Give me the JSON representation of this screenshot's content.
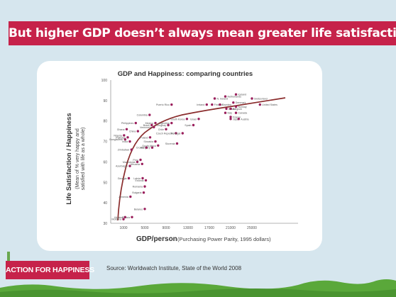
{
  "slide": {
    "title": "But higher GDP doesn’t always mean greater life satisfaction",
    "logo_text": "ACTION FOR HAPPINESS",
    "source": "Source: Worldwatch Institute, State of the World 2008",
    "colors": {
      "banner": "#c6224a",
      "background": "#d6e6ee",
      "dots": "#9a1f5c",
      "curve": "#8a2c2c",
      "grass": "#5aa83a"
    }
  },
  "chart_data": {
    "type": "scatter",
    "title": "GDP and Happiness: comparing countries",
    "xlabel_main": "GDP/person",
    "xlabel_sub": "(Purchasing Power Parity, 1995 dollars)",
    "ylabel_main": "Life Satisfaction / Happiness",
    "ylabel_sub": [
      "(Mean of % very happy and",
      "satisfied with life as a whole)"
    ],
    "x_ticks": [
      "1000",
      "5000",
      "9000",
      "13000",
      "17000",
      "21000",
      "25000"
    ],
    "y_ticks": [
      30,
      40,
      50,
      60,
      70,
      80,
      90,
      100
    ],
    "ylim": [
      30,
      100
    ],
    "grid": false,
    "points": [
      {
        "label": "Moldova",
        "x": 1000,
        "y": 32
      },
      {
        "label": "Russia",
        "x": 2600,
        "y": 33
      },
      {
        "label": "Ukraine",
        "x": 1300,
        "y": 33
      },
      {
        "label": "Belarus",
        "x": 5000,
        "y": 37
      },
      {
        "label": "Bulgaria",
        "x": 4800,
        "y": 45
      },
      {
        "label": "Latvia",
        "x": 4600,
        "y": 52
      },
      {
        "label": "Romania",
        "x": 5000,
        "y": 48
      },
      {
        "label": "Estonia",
        "x": 5200,
        "y": 51
      },
      {
        "label": "Lithuania",
        "x": 4500,
        "y": 59
      },
      {
        "label": "Hungary",
        "x": 6400,
        "y": 67
      },
      {
        "label": "Croatia",
        "x": 5300,
        "y": 67
      },
      {
        "label": "South Africa",
        "x": 7500,
        "y": 68
      },
      {
        "label": "Slovakia",
        "x": 7000,
        "y": 70
      },
      {
        "label": "Poland",
        "x": 6000,
        "y": 72
      },
      {
        "label": "Czech Republic",
        "x": 10800,
        "y": 74
      },
      {
        "label": "Chile",
        "x": 9000,
        "y": 76
      },
      {
        "label": "Argentina",
        "x": 10000,
        "y": 79
      },
      {
        "label": "Uruguay",
        "x": 9400,
        "y": 78
      },
      {
        "label": "Portugal",
        "x": 12000,
        "y": 74
      },
      {
        "label": "Slovenia",
        "x": 11000,
        "y": 69
      },
      {
        "label": "Puerto Rico",
        "x": 10000,
        "y": 88
      },
      {
        "label": "South Korea",
        "x": 12800,
        "y": 81
      },
      {
        "label": "Spain",
        "x": 14000,
        "y": 78
      },
      {
        "label": "Israel",
        "x": 15000,
        "y": 81
      },
      {
        "label": "Colombia",
        "x": 5900,
        "y": 83
      },
      {
        "label": "Mexico",
        "x": 7000,
        "y": 79
      },
      {
        "label": "Venezuela",
        "x": 6700,
        "y": 77
      },
      {
        "label": "Philippines",
        "x": 3300,
        "y": 79
      },
      {
        "label": "Brazil",
        "x": 6300,
        "y": 78
      },
      {
        "label": "China",
        "x": 3700,
        "y": 75
      },
      {
        "label": "Ghana",
        "x": 1600,
        "y": 76
      },
      {
        "label": "Nigeria",
        "x": 1100,
        "y": 73
      },
      {
        "label": "Bangladesh",
        "x": 1300,
        "y": 71
      },
      {
        "label": "Pakistan",
        "x": 1800,
        "y": 72
      },
      {
        "label": "India",
        "x": 2200,
        "y": 70
      },
      {
        "label": "Peru",
        "x": 4200,
        "y": 61
      },
      {
        "label": "Macedonia",
        "x": 3600,
        "y": 60
      },
      {
        "label": "Azerbaijan",
        "x": 2200,
        "y": 58
      },
      {
        "label": "Georgia",
        "x": 2000,
        "y": 52
      },
      {
        "label": "Armenia",
        "x": 2300,
        "y": 43
      },
      {
        "label": "Zimbabwe",
        "x": 2500,
        "y": 66
      },
      {
        "label": "Ireland",
        "x": 16500,
        "y": 88
      },
      {
        "label": "Finland",
        "x": 17500,
        "y": 88
      },
      {
        "label": "N. Ireland",
        "x": 18000,
        "y": 91
      },
      {
        "label": "Netherlands",
        "x": 20000,
        "y": 92
      },
      {
        "label": "Iceland",
        "x": 22000,
        "y": 93
      },
      {
        "label": "Denmark",
        "x": 21500,
        "y": 89
      },
      {
        "label": "Norway",
        "x": 22000,
        "y": 87
      },
      {
        "label": "Britain",
        "x": 20200,
        "y": 86
      },
      {
        "label": "Belgium",
        "x": 21000,
        "y": 86
      },
      {
        "label": "Sweden",
        "x": 19000,
        "y": 88
      },
      {
        "label": "Switzerland",
        "x": 25000,
        "y": 91
      },
      {
        "label": "United States",
        "x": 26500,
        "y": 88
      },
      {
        "label": "Italy",
        "x": 20000,
        "y": 84
      },
      {
        "label": "Canada",
        "x": 22000,
        "y": 84
      },
      {
        "label": "France",
        "x": 21000,
        "y": 82
      },
      {
        "label": "Japan",
        "x": 21000,
        "y": 81
      },
      {
        "label": "Austria",
        "x": 22500,
        "y": 81
      }
    ]
  }
}
